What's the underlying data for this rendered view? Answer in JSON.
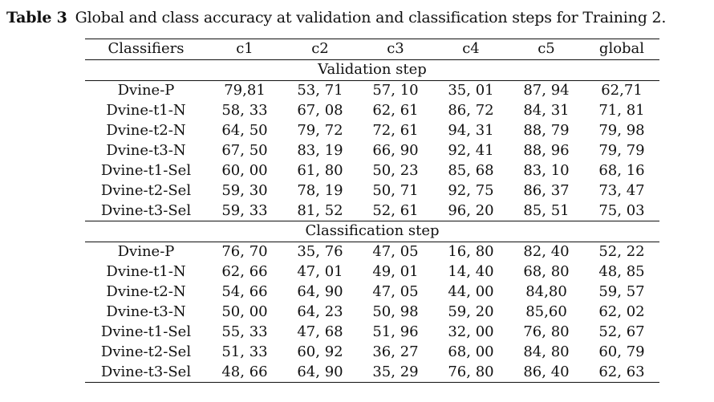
{
  "caption": {
    "label": "Table 3",
    "text": "Global and class accuracy at validation and classification steps for Training 2."
  },
  "table": {
    "headers": [
      "Classifiers",
      "c1",
      "c2",
      "c3",
      "c4",
      "c5",
      "global"
    ],
    "sections": [
      {
        "title": "Validation step",
        "rows": [
          {
            "name": "Dvine-P",
            "cells": [
              {
                "v": "79,81",
                "b": false
              },
              {
                "v": "53, 71",
                "b": false
              },
              {
                "v": "57, 10",
                "b": false
              },
              {
                "v": "35, 01",
                "b": false
              },
              {
                "v": "87, 94",
                "b": false
              },
              {
                "v": "62,71",
                "b": false
              }
            ]
          },
          {
            "name": "Dvine-t1-N",
            "cells": [
              {
                "v": "58, 33",
                "b": false
              },
              {
                "v": "67, 08",
                "b": false
              },
              {
                "v": "62, 61",
                "b": false
              },
              {
                "v": "86, 72",
                "b": false
              },
              {
                "v": "84, 31",
                "b": false
              },
              {
                "v": "71, 81",
                "b": false
              }
            ]
          },
          {
            "name": "Dvine-t2-N",
            "cells": [
              {
                "v": "64, 50",
                "b": false
              },
              {
                "v": "79, 72",
                "b": false
              },
              {
                "v": "72, 61",
                "b": true
              },
              {
                "v": "94, 31",
                "b": true
              },
              {
                "v": "88, 79",
                "b": false
              },
              {
                "v": "79, 98",
                "b": true
              }
            ]
          },
          {
            "name": "Dvine-t3-N",
            "cells": [
              {
                "v": "67, 50",
                "b": true
              },
              {
                "v": "83, 19",
                "b": true
              },
              {
                "v": "66, 90",
                "b": false
              },
              {
                "v": "92, 41",
                "b": false
              },
              {
                "v": "88, 96",
                "b": true
              },
              {
                "v": "79, 79",
                "b": false
              }
            ]
          },
          {
            "name": "Dvine-t1-Sel",
            "cells": [
              {
                "v": "60, 00",
                "b": false
              },
              {
                "v": "61, 80",
                "b": false
              },
              {
                "v": "50, 23",
                "b": false
              },
              {
                "v": "85, 68",
                "b": false
              },
              {
                "v": "83, 10",
                "b": false
              },
              {
                "v": "68, 16",
                "b": false
              }
            ]
          },
          {
            "name": "Dvine-t2-Sel",
            "cells": [
              {
                "v": "59, 30",
                "b": false
              },
              {
                "v": "78, 19",
                "b": false
              },
              {
                "v": "50, 71",
                "b": false
              },
              {
                "v": "92, 75",
                "b": false
              },
              {
                "v": "86, 37",
                "b": false
              },
              {
                "v": "73, 47",
                "b": false
              }
            ]
          },
          {
            "name": "Dvine-t3-Sel",
            "cells": [
              {
                "v": "59, 33",
                "b": false
              },
              {
                "v": "81, 52",
                "b": false
              },
              {
                "v": "52, 61",
                "b": false
              },
              {
                "v": "96, 20",
                "b": false
              },
              {
                "v": "85, 51",
                "b": false
              },
              {
                "v": "75, 03",
                "b": false
              }
            ]
          }
        ]
      },
      {
        "title": "Classification step",
        "rows": [
          {
            "name": "Dvine-P",
            "cells": [
              {
                "v": "76, 70",
                "b": true
              },
              {
                "v": "35, 76",
                "b": false
              },
              {
                "v": "47, 05",
                "b": false
              },
              {
                "v": "16, 80",
                "b": false
              },
              {
                "v": "82, 40",
                "b": false
              },
              {
                "v": "52, 22",
                "b": false
              }
            ]
          },
          {
            "name": "Dvine-t1-N",
            "cells": [
              {
                "v": "62, 66",
                "b": false
              },
              {
                "v": "47, 01",
                "b": false
              },
              {
                "v": "49, 01",
                "b": false
              },
              {
                "v": "14, 40",
                "b": false
              },
              {
                "v": "68, 80",
                "b": false
              },
              {
                "v": "48, 85",
                "b": false
              }
            ]
          },
          {
            "name": "Dvine-t2-N",
            "cells": [
              {
                "v": "54, 66",
                "b": false
              },
              {
                "v": "64, 90",
                "b": true
              },
              {
                "v": "47, 05",
                "b": false
              },
              {
                "v": "44, 00",
                "b": false
              },
              {
                "v": "84,80",
                "b": false
              },
              {
                "v": "59, 57",
                "b": false
              }
            ]
          },
          {
            "name": "Dvine-t3-N",
            "cells": [
              {
                "v": "50, 00",
                "b": false
              },
              {
                "v": "64, 23",
                "b": false
              },
              {
                "v": "50, 98",
                "b": false
              },
              {
                "v": "59, 20",
                "b": false
              },
              {
                "v": "85,60",
                "b": false
              },
              {
                "v": "62, 02",
                "b": false
              }
            ]
          },
          {
            "name": "Dvine-t1-Sel",
            "cells": [
              {
                "v": "55, 33",
                "b": false
              },
              {
                "v": "47, 68",
                "b": false
              },
              {
                "v": "51, 96",
                "b": true
              },
              {
                "v": "32, 00",
                "b": false
              },
              {
                "v": "76, 80",
                "b": false
              },
              {
                "v": "52, 67",
                "b": false
              }
            ]
          },
          {
            "name": "Dvine-t2-Sel",
            "cells": [
              {
                "v": "51, 33",
                "b": false
              },
              {
                "v": "60, 92",
                "b": false
              },
              {
                "v": "36, 27",
                "b": false
              },
              {
                "v": "68, 00",
                "b": false
              },
              {
                "v": "84, 80",
                "b": false
              },
              {
                "v": "60, 79",
                "b": false
              }
            ]
          },
          {
            "name": "Dvine-t3-Sel",
            "cells": [
              {
                "v": "48, 66",
                "b": false
              },
              {
                "v": "64, 90",
                "b": true
              },
              {
                "v": "35, 29",
                "b": false
              },
              {
                "v": "76, 80",
                "b": true
              },
              {
                "v": "86, 40",
                "b": true
              },
              {
                "v": "62, 63",
                "b": true
              }
            ]
          }
        ]
      }
    ]
  }
}
